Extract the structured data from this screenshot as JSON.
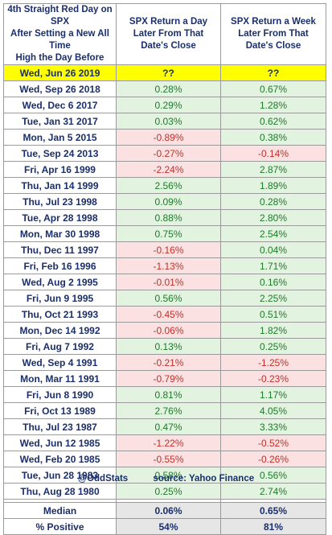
{
  "header": {
    "col1": [
      "4th Straight Red Day on SPX",
      "After Setting a New All Time",
      "High the Day Before"
    ],
    "col2": [
      "SPX Return a Day",
      "Later From That",
      "Date's Close"
    ],
    "col3": [
      "SPX Return a Week",
      "Later From That",
      "Date's Close"
    ]
  },
  "highlight": {
    "date": "Wed, Jun 26 2019",
    "day": "??",
    "week": "??"
  },
  "rows": [
    {
      "date": "Wed, Sep 26 2018",
      "day": "0.28%",
      "week": "0.67%"
    },
    {
      "date": "Wed, Dec 6 2017",
      "day": "0.29%",
      "week": "1.28%"
    },
    {
      "date": "Tue, Jan 31 2017",
      "day": "0.03%",
      "week": "0.62%"
    },
    {
      "date": "Mon, Jan 5 2015",
      "day": "-0.89%",
      "week": "0.38%"
    },
    {
      "date": "Tue, Sep 24 2013",
      "day": "-0.27%",
      "week": "-0.14%"
    },
    {
      "date": "Fri, Apr 16 1999",
      "day": "-2.24%",
      "week": "2.87%"
    },
    {
      "date": "Thu, Jan 14 1999",
      "day": "2.56%",
      "week": "1.89%"
    },
    {
      "date": "Thu, Jul 23 1998",
      "day": "0.09%",
      "week": "0.28%"
    },
    {
      "date": "Tue, Apr 28 1998",
      "day": "0.88%",
      "week": "2.80%"
    },
    {
      "date": "Mon, Mar 30 1998",
      "day": "0.75%",
      "week": "2.54%"
    },
    {
      "date": "Thu, Dec 11 1997",
      "day": "-0.16%",
      "week": "0.04%"
    },
    {
      "date": "Fri, Feb 16 1996",
      "day": "-1.13%",
      "week": "1.71%"
    },
    {
      "date": "Wed, Aug 2 1995",
      "day": "-0.01%",
      "week": "0.16%"
    },
    {
      "date": "Fri, Jun 9 1995",
      "day": "0.56%",
      "week": "2.25%"
    },
    {
      "date": "Thu, Oct 21 1993",
      "day": "-0.45%",
      "week": "0.51%"
    },
    {
      "date": "Mon, Dec 14 1992",
      "day": "-0.06%",
      "week": "1.82%"
    },
    {
      "date": "Fri, Aug 7 1992",
      "day": "0.13%",
      "week": "0.25%"
    },
    {
      "date": "Wed, Sep 4 1991",
      "day": "-0.21%",
      "week": "-1.25%"
    },
    {
      "date": "Mon, Mar 11 1991",
      "day": "-0.79%",
      "week": "-0.23%"
    },
    {
      "date": "Fri, Jun 8 1990",
      "day": "0.81%",
      "week": "1.17%"
    },
    {
      "date": "Fri, Oct 13 1989",
      "day": "2.76%",
      "week": "4.05%"
    },
    {
      "date": "Thu, Jul 23 1987",
      "day": "0.47%",
      "week": "3.33%"
    },
    {
      "date": "Wed, Jun 12 1985",
      "day": "-1.22%",
      "week": "-0.52%"
    },
    {
      "date": "Wed, Feb 20 1985",
      "day": "-0.55%",
      "week": "-0.26%"
    },
    {
      "date": "Tue, Jun 28 1983",
      "day": "0.58%",
      "week": "0.56%"
    },
    {
      "date": "Thu, Aug 28 1980",
      "day": "0.25%",
      "week": "2.74%"
    }
  ],
  "summary": [
    {
      "label": "Median",
      "day": "0.06%",
      "week": "0.65%"
    },
    {
      "label": "% Positive",
      "day": "54%",
      "week": "81%"
    }
  ],
  "footer": {
    "handle": "@OddStats",
    "source": "source: Yahoo Finance"
  },
  "colors": {
    "text_navy": "#1a2f6b",
    "highlight": "#ffff00",
    "positive_bg": "#e2f3e0",
    "positive_text": "#1f7a2b",
    "negative_bg": "#fbe1e1",
    "negative_text": "#c0302a",
    "summary_bg": "#e6e6e6"
  }
}
